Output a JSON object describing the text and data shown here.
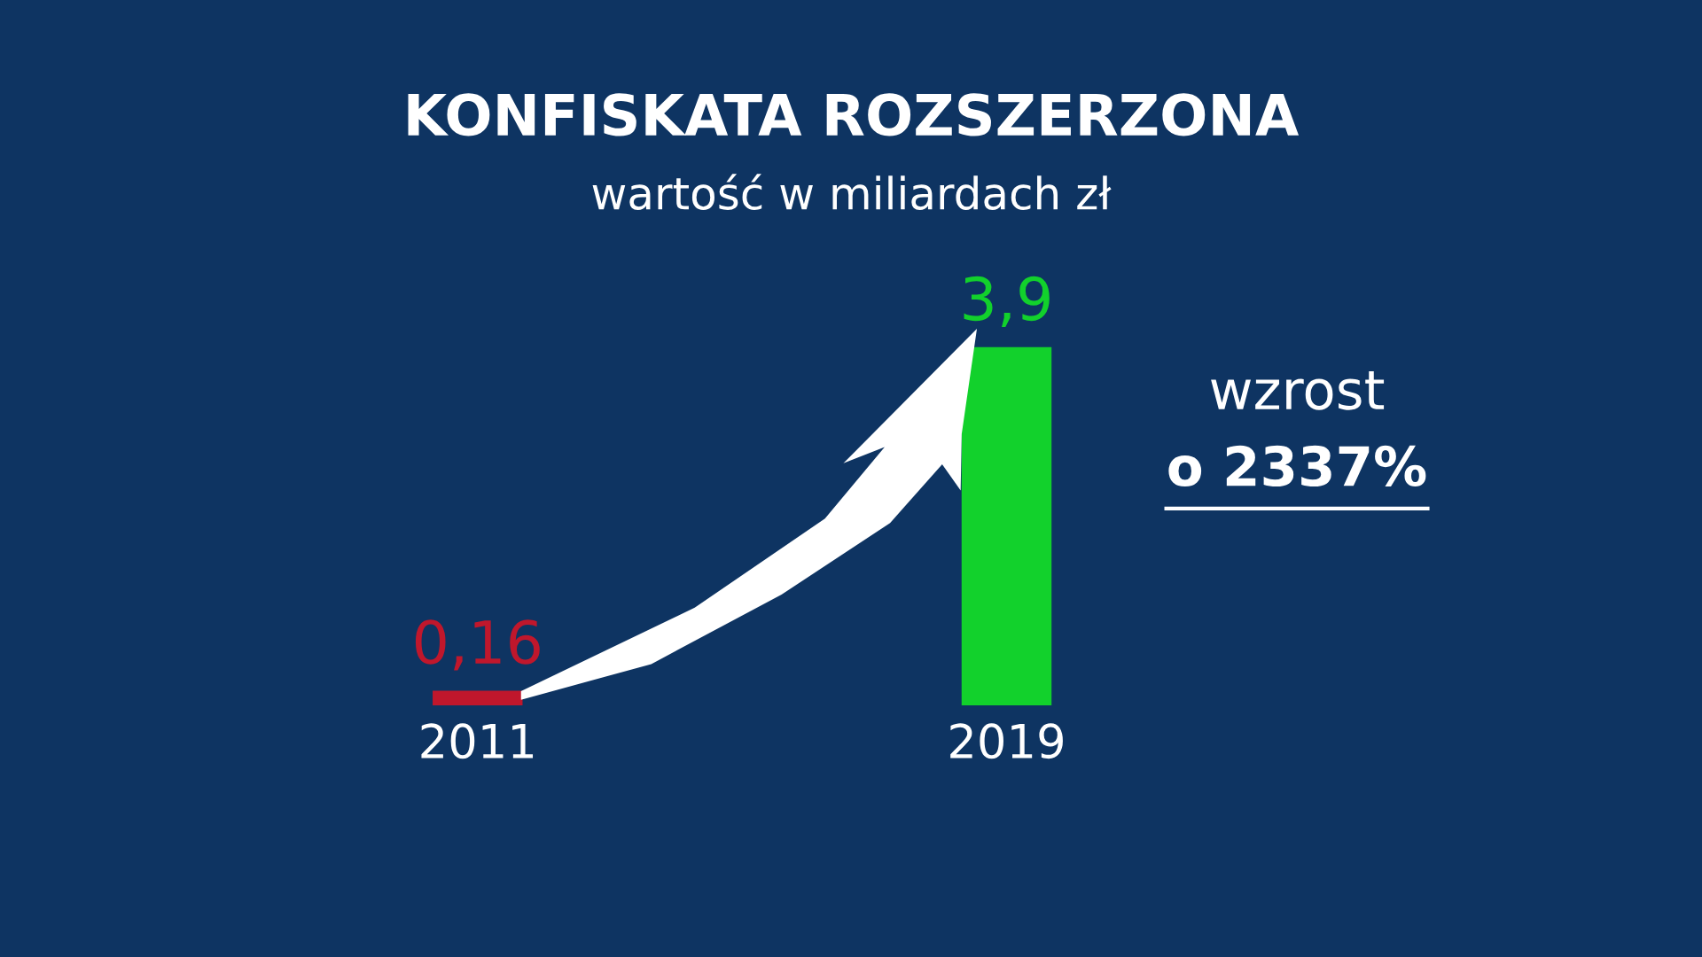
{
  "chart_data": {
    "type": "bar",
    "title": "KONFISKATA ROZSZERZONA",
    "subtitle": "wartość w miliardach zł",
    "categories": [
      "2011",
      "2019"
    ],
    "values": [
      0.16,
      3.9
    ],
    "colors": [
      "#c0172c",
      "#12d12c"
    ],
    "value_labels": [
      "0,16",
      "3,9"
    ],
    "tick_labels": "x",
    "annotations": [
      "wzrost",
      "o 2337%"
    ]
  }
}
